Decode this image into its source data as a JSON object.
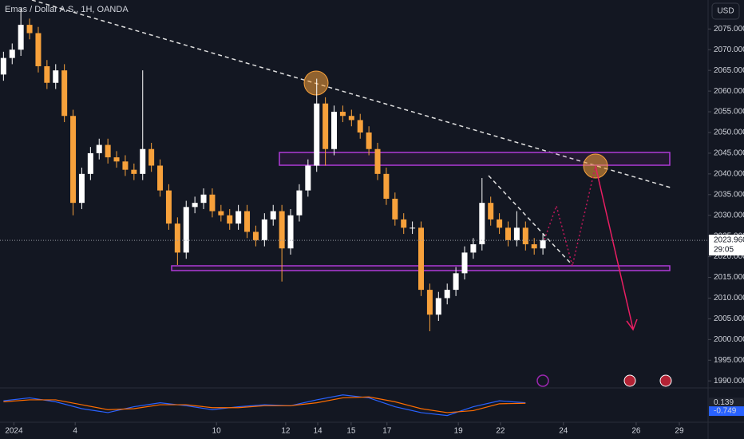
{
  "header": {
    "title": "Emas / Dollar A.S., 1H, OANDA",
    "currency": "USD"
  },
  "chart_data": {
    "type": "candlestick",
    "x": [
      -0.3,
      -0.05,
      0.2,
      0.45,
      0.7,
      0.95,
      1.2,
      1.45,
      1.7,
      1.95,
      2.2,
      2.45,
      2.7,
      2.95,
      3.2,
      3.45,
      3.7,
      3.95,
      4.2,
      4.45,
      4.7,
      4.95,
      5.2,
      5.45,
      5.7,
      5.95,
      6.2,
      6.45,
      6.7,
      6.95,
      7.2,
      7.45,
      7.7,
      7.95,
      8.2,
      8.45,
      8.7,
      8.95,
      9.2,
      9.45,
      9.7,
      9.95,
      10.2,
      10.45,
      10.7,
      10.95,
      11.2,
      11.45,
      11.7,
      11.95,
      12.2,
      12.45,
      12.7,
      12.95,
      13.2,
      13.45,
      13.7,
      13.95,
      14.2,
      14.45,
      14.7,
      14.95,
      15.2
    ],
    "open": [
      2064,
      2068,
      2070,
      2076,
      2074,
      2066,
      2062,
      2065,
      2054,
      2033,
      2040,
      2045,
      2047,
      2044,
      2043,
      2041,
      2040,
      2046,
      2042,
      2036,
      2028,
      2021,
      2032,
      2033,
      2035,
      2031,
      2030,
      2028,
      2031,
      2026,
      2024,
      2029,
      2031,
      2022,
      2030,
      2036,
      2042,
      2057,
      2046,
      2055,
      2054,
      2053,
      2050,
      2046,
      2040,
      2034,
      2029,
      2027,
      2027,
      2012,
      2006,
      2010,
      2012,
      2016,
      2021,
      2023,
      2033,
      2029,
      2027,
      2024,
      2027,
      2023,
      2022
    ],
    "high": [
      2069.5,
      2071.5,
      2080,
      2077.5,
      2075.5,
      2067.5,
      2066.5,
      2066.5,
      2055.5,
      2041.5,
      2046.5,
      2048.5,
      2048.5,
      2045.5,
      2044.5,
      2042.5,
      2065,
      2047.5,
      2043.5,
      2037.5,
      2029.5,
      2033.5,
      2034.5,
      2036.5,
      2036.5,
      2032.5,
      2031.5,
      2032.5,
      2032.5,
      2027.5,
      2030.5,
      2032.5,
      2032.5,
      2031.5,
      2037.5,
      2043.5,
      2063,
      2058.5,
      2056.5,
      2056.5,
      2055.5,
      2054.5,
      2051.5,
      2047.5,
      2041.5,
      2035.5,
      2030.5,
      2028.5,
      2028.5,
      2013.5,
      2011.5,
      2013.5,
      2017.5,
      2022.5,
      2024.5,
      2039,
      2034.5,
      2030.5,
      2028.5,
      2031,
      2028.5,
      2024.5,
      2025.5
    ],
    "low": [
      2062.5,
      2066.5,
      2068.5,
      2072.5,
      2064.5,
      2060.5,
      2060.5,
      2052.5,
      2030,
      2031.5,
      2038.5,
      2043.5,
      2042.5,
      2041.5,
      2039.5,
      2038.5,
      2038.5,
      2040.5,
      2034.5,
      2026.5,
      2018,
      2019.5,
      2030.5,
      2031.5,
      2029.5,
      2028.5,
      2026.5,
      2026.5,
      2024.5,
      2022.5,
      2022.5,
      2027.5,
      2014,
      2020.5,
      2028.5,
      2034.5,
      2040.5,
      2042,
      2044.5,
      2052.5,
      2051.5,
      2048.5,
      2044.5,
      2038.5,
      2032.5,
      2027.5,
      2025.5,
      2025.5,
      2010.5,
      2002,
      2004.5,
      2008.5,
      2010.5,
      2014.5,
      2019.5,
      2021.5,
      2027.5,
      2025.5,
      2022.5,
      2022.5,
      2021.5,
      2020.5,
      2020.5
    ],
    "close": [
      2068,
      2070,
      2076,
      2074,
      2066,
      2062,
      2065,
      2054,
      2033,
      2040,
      2045,
      2047,
      2044,
      2043,
      2041,
      2040,
      2046,
      2042,
      2036,
      2028,
      2021,
      2032,
      2033,
      2035,
      2031,
      2030,
      2028,
      2031,
      2026,
      2024,
      2029,
      2031,
      2022,
      2030,
      2036,
      2042,
      2057,
      2046,
      2055,
      2054,
      2053,
      2050,
      2046,
      2040,
      2034,
      2029,
      2027,
      2027,
      2012,
      2006,
      2010,
      2012,
      2016,
      2021,
      2023,
      2033,
      2029,
      2027,
      2024,
      2027,
      2023,
      2022,
      2024
    ],
    "up_color": "#ffffff",
    "down_color": "#f7a13b",
    "xlim": [
      -0.4,
      19.9
    ],
    "xticks": [
      {
        "value": 0,
        "label": "2024"
      },
      {
        "value": 1.76,
        "label": "4"
      },
      {
        "value": 5.82,
        "label": "10"
      },
      {
        "value": 7.81,
        "label": "12"
      },
      {
        "value": 8.73,
        "label": "14"
      },
      {
        "value": 9.69,
        "label": "15"
      },
      {
        "value": 10.72,
        "label": "17"
      },
      {
        "value": 12.77,
        "label": "19"
      },
      {
        "value": 13.98,
        "label": "22"
      },
      {
        "value": 15.79,
        "label": "24"
      },
      {
        "value": 17.88,
        "label": "26"
      },
      {
        "value": 19.12,
        "label": "29"
      }
    ],
    "ylim": [
      1988.5,
      2082
    ],
    "yticks": [
      {
        "value": 1990,
        "label": "1990.000"
      },
      {
        "value": 1995,
        "label": "1995.000"
      },
      {
        "value": 2000,
        "label": "2000.000"
      },
      {
        "value": 2005,
        "label": "2005.000"
      },
      {
        "value": 2010,
        "label": "2010.000"
      },
      {
        "value": 2015,
        "label": "2015.000"
      },
      {
        "value": 2020,
        "label": "2020.000"
      },
      {
        "value": 2025,
        "label": "2025.000"
      },
      {
        "value": 2030,
        "label": "2030.000"
      },
      {
        "value": 2035,
        "label": "2035.000"
      },
      {
        "value": 2040,
        "label": "2040.000"
      },
      {
        "value": 2045,
        "label": "2045.000"
      },
      {
        "value": 2050,
        "label": "2050.000"
      },
      {
        "value": 2055,
        "label": "2055.000"
      },
      {
        "value": 2060,
        "label": "2060.000"
      },
      {
        "value": 2065,
        "label": "2065.000"
      },
      {
        "value": 2070,
        "label": "2070.000"
      },
      {
        "value": 2075,
        "label": "2075.000"
      }
    ],
    "last_price": {
      "value": 2023.96,
      "label": "2023.960"
    },
    "countdown": "29:05"
  },
  "indicator": {
    "type": "line",
    "x": [
      -0.3,
      0.45,
      1.2,
      1.95,
      2.7,
      3.45,
      4.2,
      4.95,
      5.7,
      6.45,
      7.2,
      7.95,
      8.7,
      9.45,
      10.2,
      10.95,
      11.7,
      12.45,
      13.2,
      13.95,
      14.7
    ],
    "ylim": [
      -1.8,
      1.45
    ],
    "series": [
      {
        "color": "#2962ff",
        "values": [
          0.3,
          0.6,
          0.2,
          -0.5,
          -0.9,
          -0.3,
          0.1,
          -0.2,
          -0.6,
          -0.3,
          -0.1,
          -0.2,
          0.4,
          0.9,
          0.6,
          -0.3,
          -0.9,
          -1.2,
          -0.3,
          0.3,
          0.1
        ]
      },
      {
        "color": "#ff6d00",
        "values": [
          0.2,
          0.4,
          0.4,
          -0.1,
          -0.6,
          -0.5,
          -0.1,
          -0.1,
          -0.4,
          -0.4,
          -0.2,
          -0.2,
          0.1,
          0.6,
          0.7,
          0.2,
          -0.5,
          -0.9,
          -0.7,
          0,
          0.05
        ]
      }
    ],
    "last_values": [
      {
        "value": 0.139,
        "label": "0.139",
        "color": "#1e222d"
      },
      {
        "value": -0.749,
        "label": "-0.749",
        "color": "#2962ff"
      }
    ]
  }
}
